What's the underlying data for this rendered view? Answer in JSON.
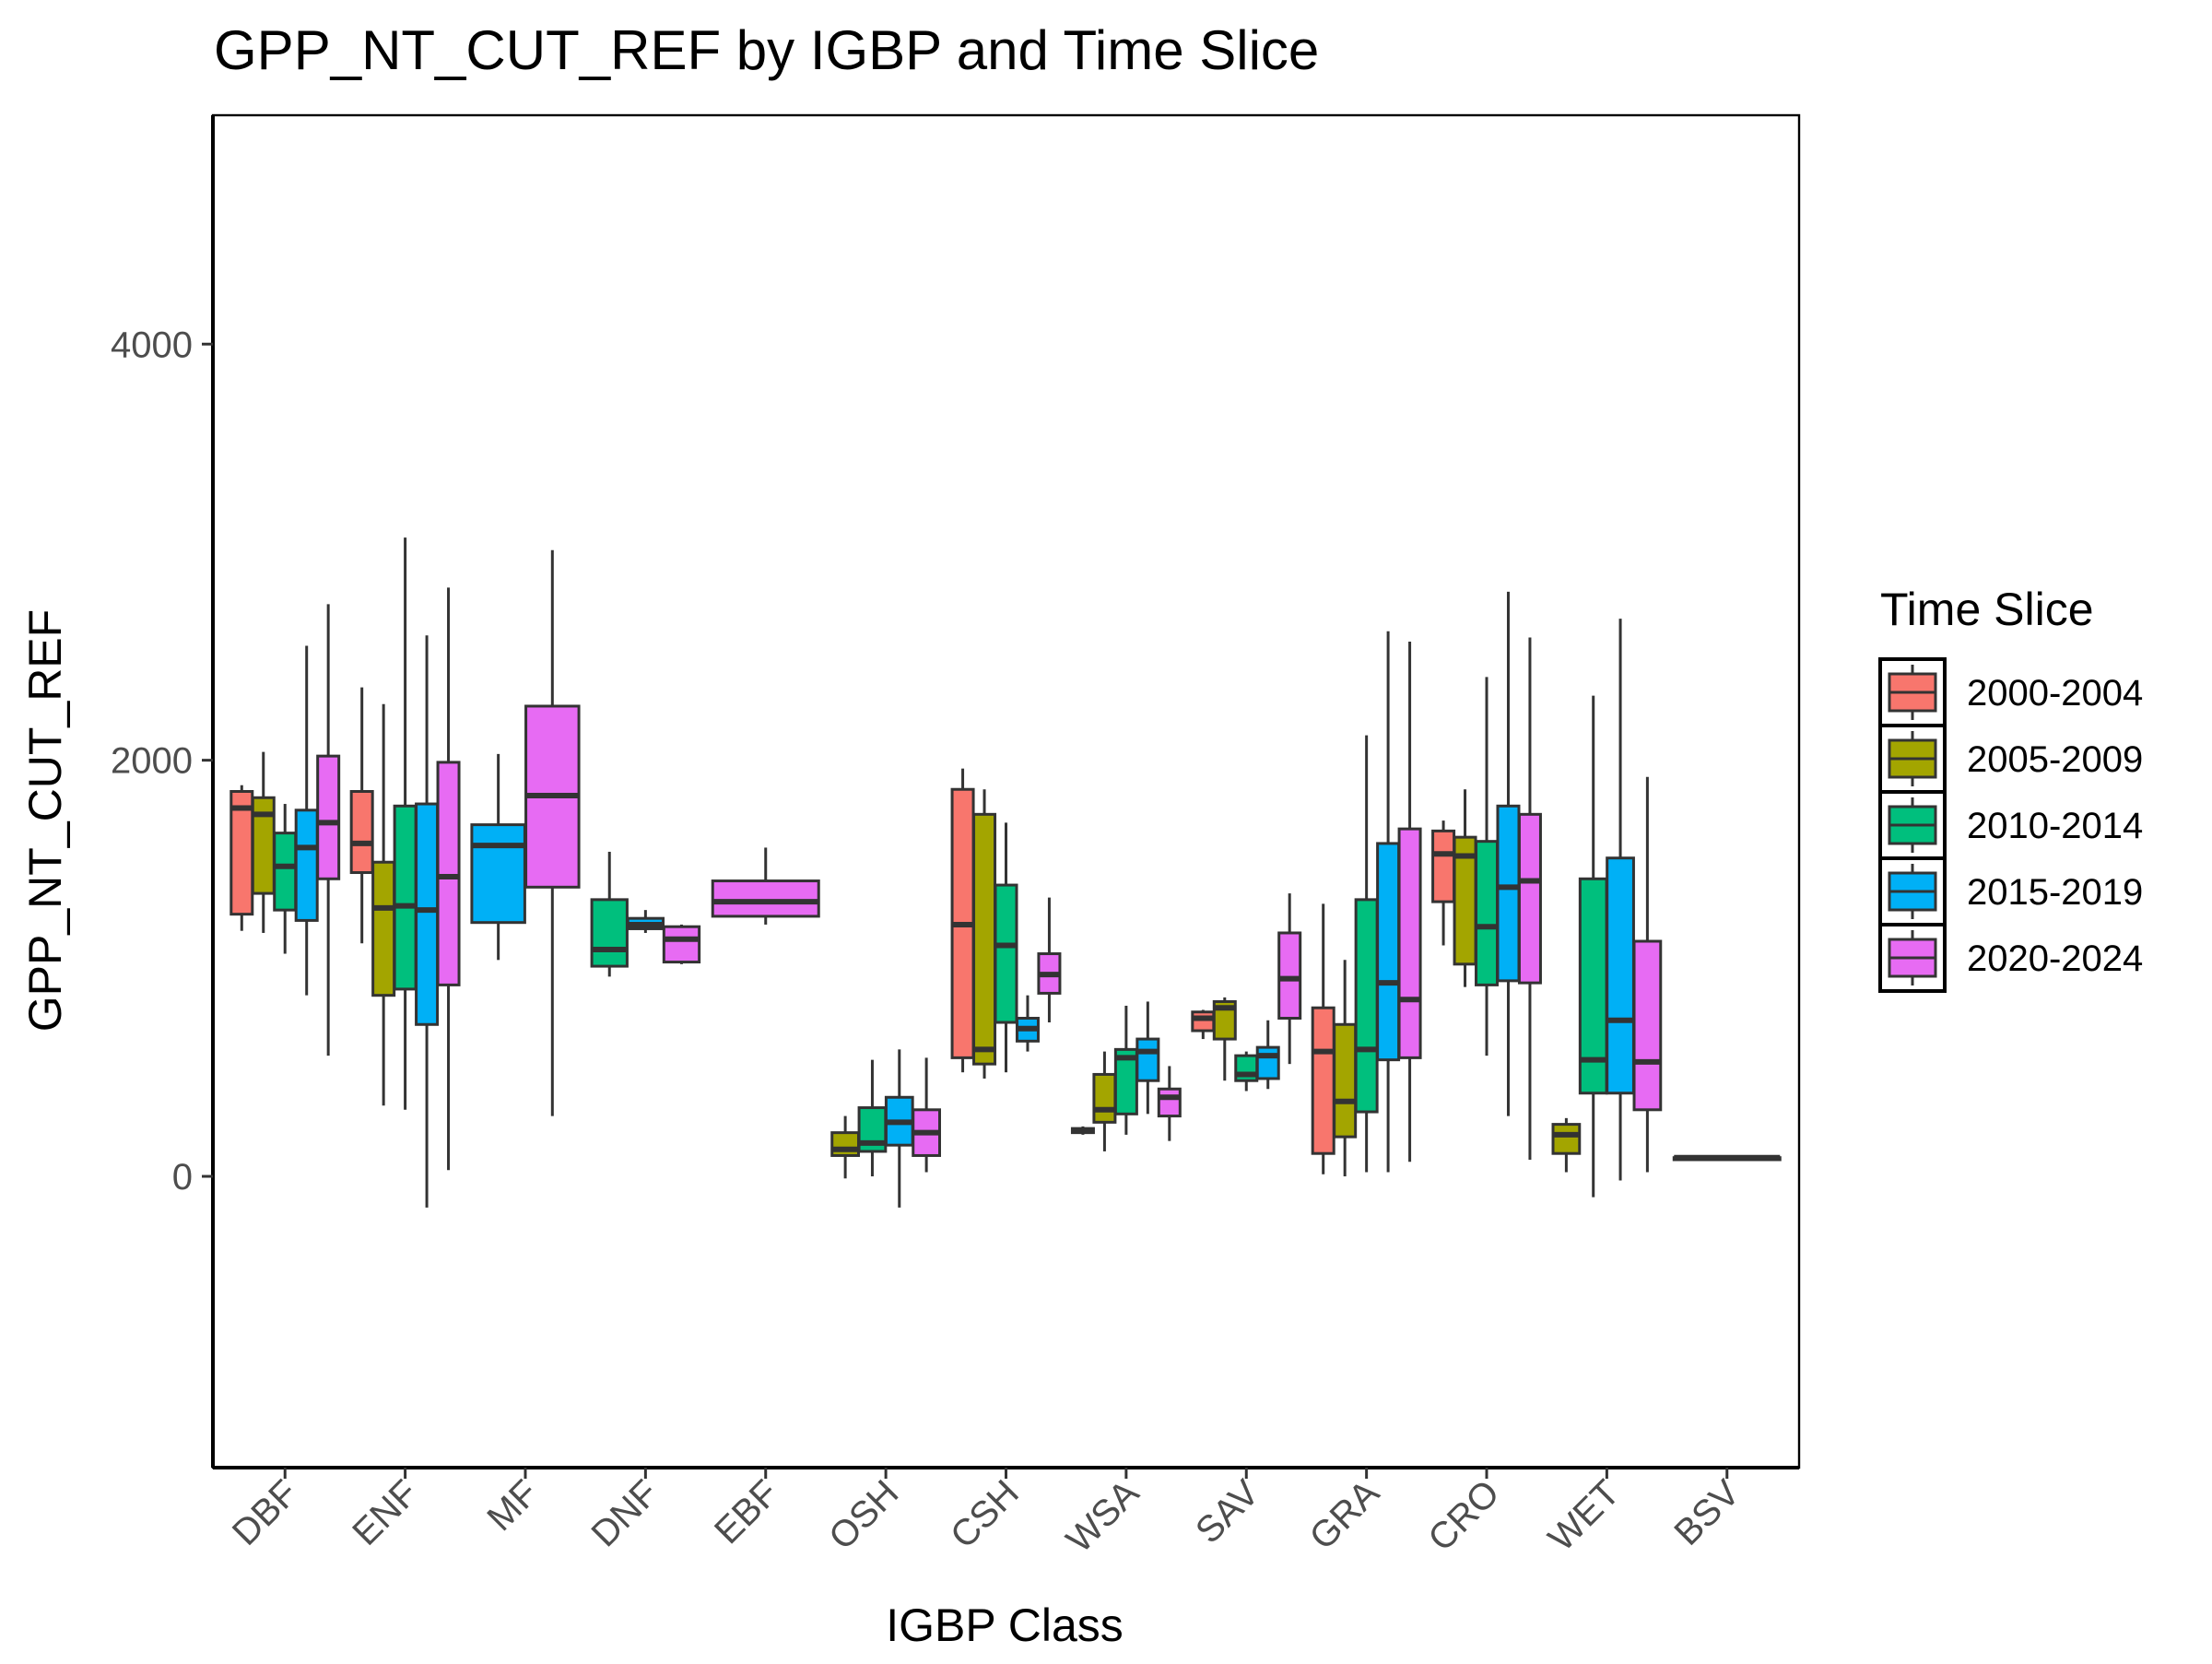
{
  "chart_data": {
    "type": "boxplot",
    "title": "GPP_NT_CUT_REF by IGBP and Time Slice",
    "xlabel": "IGBP Class",
    "ylabel": "GPP_NT_CUT_REF",
    "ylim": [
      -1400,
      5100
    ],
    "yticks": [
      0,
      2000,
      4000
    ],
    "categories": [
      "DBF",
      "ENF",
      "MF",
      "DNF",
      "EBF",
      "OSH",
      "CSH",
      "WSA",
      "SAV",
      "GRA",
      "CRO",
      "WET",
      "BSV"
    ],
    "legend": {
      "title": "Time Slice",
      "position": "right",
      "entries": [
        "2000-2004",
        "2005-2009",
        "2010-2014",
        "2015-2019",
        "2020-2024"
      ]
    },
    "series": [
      {
        "name": "2000-2004",
        "color": "#F8766D",
        "boxes": [
          {
            "category": "DBF",
            "min": 1180,
            "q1": 1260,
            "median": 1770,
            "q3": 1850,
            "max": 1880
          },
          {
            "category": "ENF",
            "min": 1120,
            "q1": 1460,
            "median": 1600,
            "q3": 1850,
            "max": 2350
          },
          {
            "category": "CSH",
            "min": 500,
            "q1": 570,
            "median": 1210,
            "q3": 1860,
            "max": 1960
          },
          {
            "category": "WSA",
            "min": 200,
            "q1": 210,
            "median": 220,
            "q3": 230,
            "max": 240
          },
          {
            "category": "SAV",
            "min": 660,
            "q1": 700,
            "median": 760,
            "q3": 790,
            "max": 800
          },
          {
            "category": "GRA",
            "min": 10,
            "q1": 110,
            "median": 600,
            "q3": 810,
            "max": 1310
          },
          {
            "category": "CRO",
            "min": 1110,
            "q1": 1320,
            "median": 1550,
            "q3": 1660,
            "max": 1710
          }
        ]
      },
      {
        "name": "2005-2009",
        "color": "#A3A500",
        "boxes": [
          {
            "category": "DBF",
            "min": 1170,
            "q1": 1360,
            "median": 1740,
            "q3": 1820,
            "max": 2040
          },
          {
            "category": "ENF",
            "min": 340,
            "q1": 870,
            "median": 1290,
            "q3": 1510,
            "max": 2270
          },
          {
            "category": "OSH",
            "min": -10,
            "q1": 100,
            "median": 130,
            "q3": 210,
            "max": 290
          },
          {
            "category": "CSH",
            "min": 470,
            "q1": 540,
            "median": 610,
            "q3": 1740,
            "max": 1860
          },
          {
            "category": "WSA",
            "min": 120,
            "q1": 260,
            "median": 320,
            "q3": 490,
            "max": 600
          },
          {
            "category": "SAV",
            "min": 460,
            "q1": 660,
            "median": 810,
            "q3": 840,
            "max": 860
          },
          {
            "category": "GRA",
            "min": 0,
            "q1": 190,
            "median": 360,
            "q3": 730,
            "max": 1040
          },
          {
            "category": "CRO",
            "min": 910,
            "q1": 1020,
            "median": 1540,
            "q3": 1630,
            "max": 1860
          },
          {
            "category": "WET",
            "min": 20,
            "q1": 110,
            "median": 200,
            "q3": 250,
            "max": 280
          }
        ]
      },
      {
        "name": "2010-2014",
        "color": "#00BF7D",
        "boxes": [
          {
            "category": "DBF",
            "min": 1070,
            "q1": 1280,
            "median": 1490,
            "q3": 1650,
            "max": 1790
          },
          {
            "category": "ENF",
            "min": 320,
            "q1": 900,
            "median": 1300,
            "q3": 1780,
            "max": 3070
          },
          {
            "category": "DNF",
            "min": 960,
            "q1": 1010,
            "median": 1090,
            "q3": 1330,
            "max": 1560
          },
          {
            "category": "OSH",
            "min": 0,
            "q1": 120,
            "median": 160,
            "q3": 330,
            "max": 560
          },
          {
            "category": "CSH",
            "min": 500,
            "q1": 740,
            "median": 1110,
            "q3": 1400,
            "max": 1700
          },
          {
            "category": "WSA",
            "min": 200,
            "q1": 300,
            "median": 570,
            "q3": 610,
            "max": 820
          },
          {
            "category": "SAV",
            "min": 410,
            "q1": 460,
            "median": 490,
            "q3": 580,
            "max": 600
          },
          {
            "category": "GRA",
            "min": 20,
            "q1": 310,
            "median": 610,
            "q3": 1330,
            "max": 2120
          },
          {
            "category": "CRO",
            "min": 580,
            "q1": 920,
            "median": 1200,
            "q3": 1610,
            "max": 2400
          },
          {
            "category": "WET",
            "min": -100,
            "q1": 400,
            "median": 560,
            "q3": 1430,
            "max": 2310
          }
        ]
      },
      {
        "name": "2015-2019",
        "color": "#00B0F6",
        "boxes": [
          {
            "category": "DBF",
            "min": 870,
            "q1": 1230,
            "median": 1580,
            "q3": 1760,
            "max": 2550
          },
          {
            "category": "ENF",
            "min": -150,
            "q1": 730,
            "median": 1280,
            "q3": 1790,
            "max": 2600
          },
          {
            "category": "MF",
            "min": 1040,
            "q1": 1220,
            "median": 1590,
            "q3": 1690,
            "max": 2030
          },
          {
            "category": "DNF",
            "min": 1170,
            "q1": 1190,
            "median": 1210,
            "q3": 1240,
            "max": 1280
          },
          {
            "category": "OSH",
            "min": -150,
            "q1": 150,
            "median": 260,
            "q3": 380,
            "max": 610
          },
          {
            "category": "CSH",
            "min": 600,
            "q1": 650,
            "median": 710,
            "q3": 760,
            "max": 870
          },
          {
            "category": "WSA",
            "min": 300,
            "q1": 460,
            "median": 600,
            "q3": 660,
            "max": 840
          },
          {
            "category": "SAV",
            "min": 420,
            "q1": 470,
            "median": 580,
            "q3": 620,
            "max": 750
          },
          {
            "category": "GRA",
            "min": 20,
            "q1": 560,
            "median": 930,
            "q3": 1600,
            "max": 2620
          },
          {
            "category": "CRO",
            "min": 290,
            "q1": 940,
            "median": 1390,
            "q3": 1780,
            "max": 2810
          },
          {
            "category": "WET",
            "min": -20,
            "q1": 400,
            "median": 750,
            "q3": 1530,
            "max": 2680
          }
        ]
      },
      {
        "name": "2020-2024",
        "color": "#E76BF3",
        "boxes": [
          {
            "category": "DBF",
            "min": 580,
            "q1": 1430,
            "median": 1700,
            "q3": 2020,
            "max": 2750
          },
          {
            "category": "ENF",
            "min": 30,
            "q1": 920,
            "median": 1440,
            "q3": 1990,
            "max": 2830
          },
          {
            "category": "MF",
            "min": 290,
            "q1": 1390,
            "median": 1830,
            "q3": 2260,
            "max": 3010
          },
          {
            "category": "DNF",
            "min": 1020,
            "q1": 1030,
            "median": 1140,
            "q3": 1200,
            "max": 1210
          },
          {
            "category": "EBF",
            "min": 1210,
            "q1": 1250,
            "median": 1320,
            "q3": 1420,
            "max": 1580
          },
          {
            "category": "OSH",
            "min": 20,
            "q1": 100,
            "median": 210,
            "q3": 320,
            "max": 570
          },
          {
            "category": "CSH",
            "min": 740,
            "q1": 880,
            "median": 970,
            "q3": 1070,
            "max": 1340
          },
          {
            "category": "WSA",
            "min": 170,
            "q1": 290,
            "median": 380,
            "q3": 420,
            "max": 530
          },
          {
            "category": "SAV",
            "min": 540,
            "q1": 760,
            "median": 950,
            "q3": 1170,
            "max": 1360
          },
          {
            "category": "GRA",
            "min": 70,
            "q1": 570,
            "median": 850,
            "q3": 1670,
            "max": 2570
          },
          {
            "category": "CRO",
            "min": 80,
            "q1": 930,
            "median": 1420,
            "q3": 1740,
            "max": 2590
          },
          {
            "category": "WET",
            "min": 20,
            "q1": 320,
            "median": 550,
            "q3": 1130,
            "max": 1920
          },
          {
            "category": "BSV",
            "min": 80,
            "q1": 80,
            "median": 90,
            "q3": 90,
            "max": 90
          }
        ]
      }
    ]
  }
}
